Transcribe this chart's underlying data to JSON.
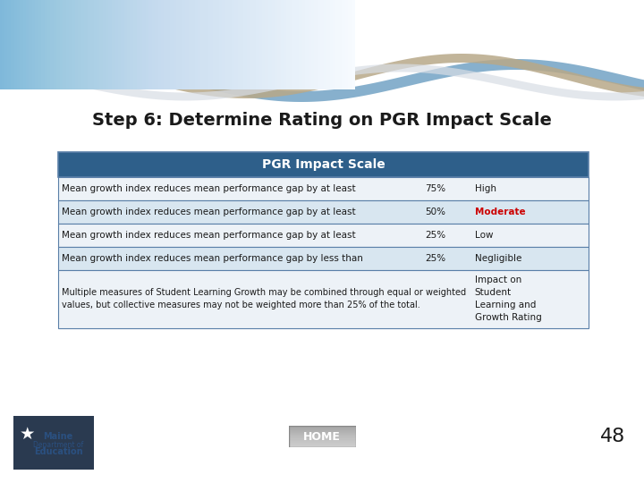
{
  "title": "Step 6: Determine Rating on PGR Impact Scale",
  "title_fontsize": 14,
  "title_color": "#1a1a1a",
  "table_header": "PGR Impact Scale",
  "header_bg": "#2E5F8A",
  "header_text_color": "#FFFFFF",
  "row_bg_light": "#EDF2F7",
  "row_bg_mid": "#D8E6F0",
  "border_color": "#5A7FA8",
  "rows": [
    {
      "left": "Mean growth index reduces mean performance gap by at least",
      "mid": "75%",
      "right": "High",
      "right_color": "#1a1a1a",
      "right_bold": false
    },
    {
      "left": "Mean growth index reduces mean performance gap by at least",
      "mid": "50%",
      "right": "Moderate",
      "right_color": "#CC0000",
      "right_bold": true
    },
    {
      "left": "Mean growth index reduces mean performance gap by at least",
      "mid": "25%",
      "right": "Low",
      "right_color": "#1a1a1a",
      "right_bold": false
    },
    {
      "left": "Mean growth index reduces mean performance gap by less than",
      "mid": "25%",
      "right": "Negligible",
      "right_color": "#1a1a1a",
      "right_bold": false
    }
  ],
  "footer_left": "Multiple measures of Student Learning Growth may be combined through equal or weighted\nvalues, but collective measures may not be weighted more than 25% of the total.",
  "footer_right": "Impact on\nStudent\nLearning and\nGrowth Rating",
  "footer_right_color": "#1a1a1a",
  "home_label": "HOME",
  "page_num": "48",
  "bg_color": "#FFFFFF"
}
